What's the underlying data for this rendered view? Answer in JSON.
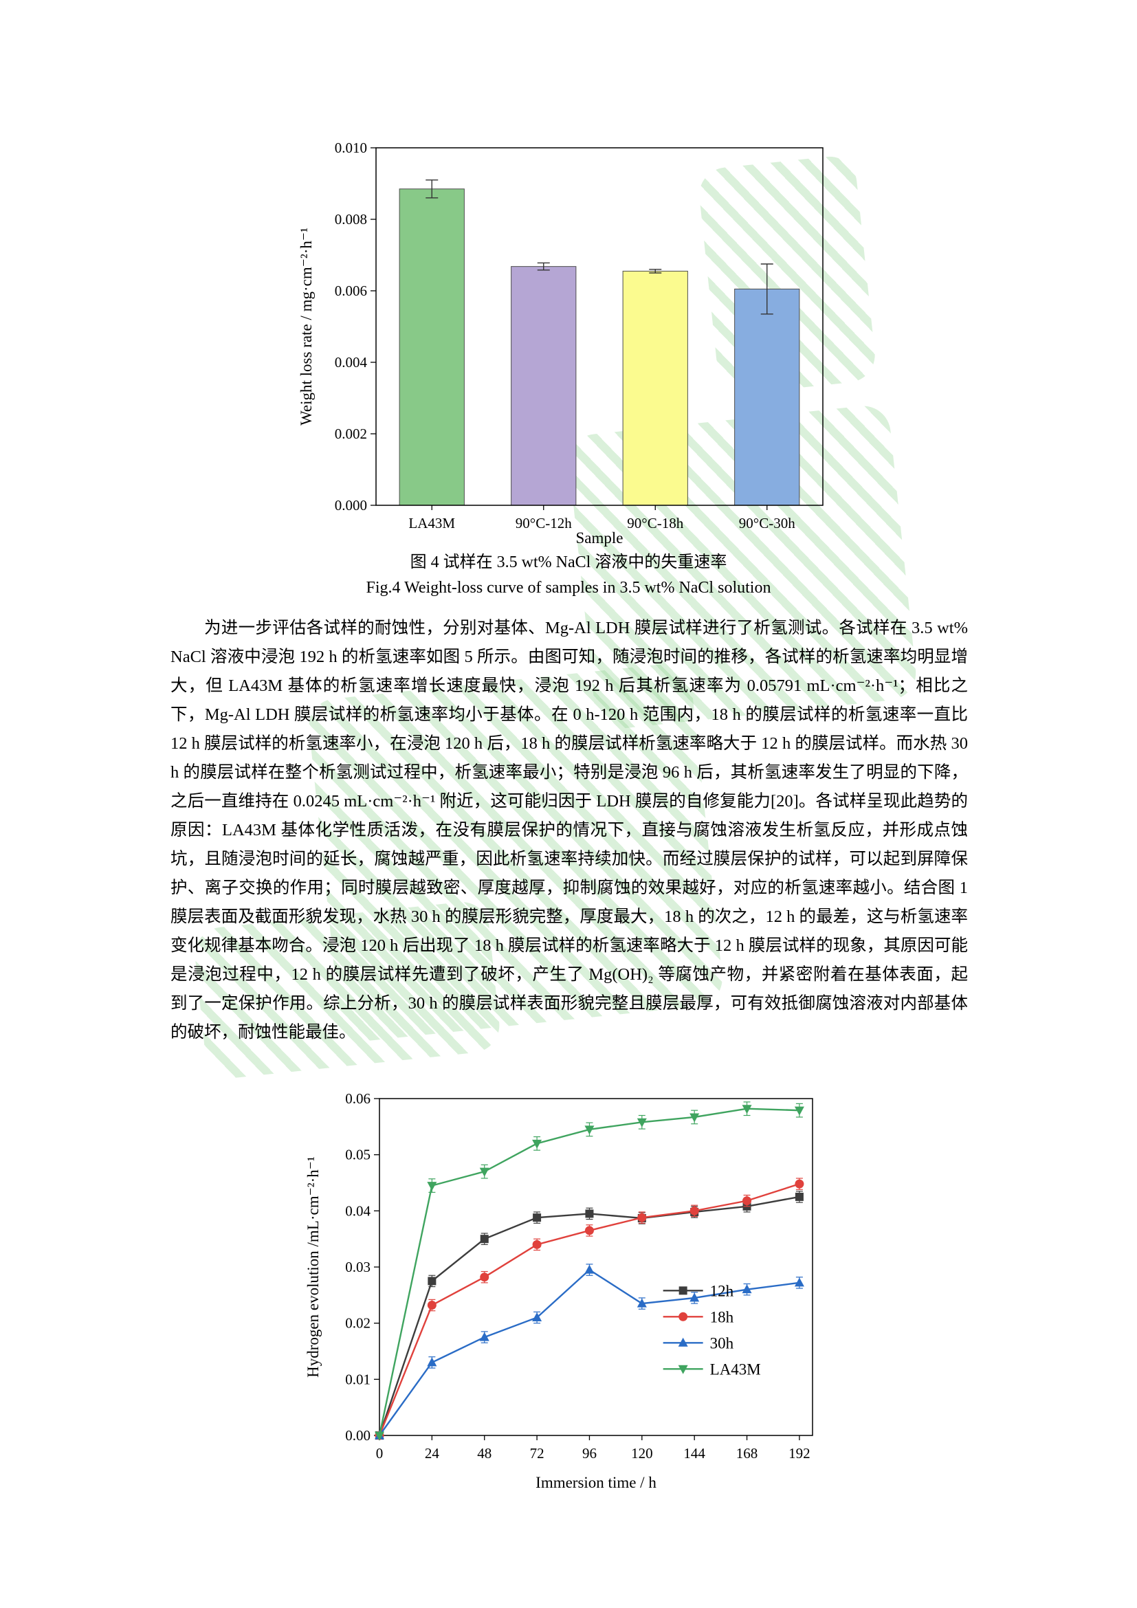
{
  "watermark": {
    "color": "#8cd28c"
  },
  "figure4": {
    "caption_zh": "图 4  试样在 3.5 wt% NaCl 溶液中的失重速率",
    "caption_en": "Fig.4 Weight-loss curve of samples in 3.5 wt% NaCl solution"
  },
  "paragraph": "为进一步评估各试样的耐蚀性，分别对基体、Mg-Al LDH 膜层试样进行了析氢测试。各试样在 3.5 wt% NaCl 溶液中浸泡 192 h 的析氢速率如图 5 所示。由图可知，随浸泡时间的推移，各试样的析氢速率均明显增大，但 LA43M 基体的析氢速率增长速度最快，浸泡 192 h 后其析氢速率为 0.05791 mL·cm⁻²·h⁻¹；相比之下，Mg-Al LDH 膜层试样的析氢速率均小于基体。在 0 h-120 h 范围内，18 h 的膜层试样的析氢速率一直比 12 h 膜层试样的析氢速率小，在浸泡 120 h 后，18 h 的膜层试样析氢速率略大于 12 h 的膜层试样。而水热 30 h 的膜层试样在整个析氢测试过程中，析氢速率最小；特别是浸泡 96 h 后，其析氢速率发生了明显的下降，之后一直维持在 0.0245 mL·cm⁻²·h⁻¹ 附近，这可能归因于 LDH 膜层的自修复能力[20]。各试样呈现此趋势的原因：LA43M 基体化学性质活泼，在没有膜层保护的情况下，直接与腐蚀溶液发生析氢反应，并形成点蚀坑，且随浸泡时间的延长，腐蚀越严重，因此析氢速率持续加快。而经过膜层保护的试样，可以起到屏障保护、离子交换的作用；同时膜层越致密、厚度越厚，抑制腐蚀的效果越好，对应的析氢速率越小。结合图 1 膜层表面及截面形貌发现，水热 30 h 的膜层形貌完整，厚度最大，18 h 的次之，12 h 的最差，这与析氢速率变化规律基本吻合。浸泡 120 h 后出现了 18 h 膜层试样的析氢速率略大于 12 h 膜层试样的现象，其原因可能是浸泡过程中，12 h 的膜层试样先遭到了破坏，产生了 Mg(OH)₂ 等腐蚀产物，并紧密附着在基体表面，起到了一定保护作用。综上分析，30 h 的膜层试样表面形貌完整且膜层最厚，可有效抵御腐蚀溶液对内部基体的破坏，耐蚀性能最佳。",
  "chart_data": [
    {
      "type": "bar",
      "title": "",
      "xlabel": "Sample",
      "ylabel": "Weight loss rate / mg·cm⁻²·h⁻¹",
      "categories": [
        "LA43M",
        "90°C-12h",
        "90°C-18h",
        "90°C-30h"
      ],
      "values": [
        0.00885,
        0.00668,
        0.00655,
        0.00605
      ],
      "errors": [
        0.00025,
        0.0001,
        5e-05,
        0.0007
      ],
      "bar_colors": [
        "#88c988",
        "#b5a6d4",
        "#fbfb8f",
        "#87ade0"
      ],
      "ylim": [
        0,
        0.01
      ],
      "ytick_step": 0.002,
      "ytick_decimals": 3,
      "yticks": [
        0.0,
        0.002,
        0.004,
        0.006,
        0.008,
        0.01
      ],
      "grid": false
    },
    {
      "type": "line",
      "title": "",
      "xlabel": "Immersion time / h",
      "ylabel": "Hydrogen evolution /mL·cm⁻²·h⁻¹",
      "x": [
        0,
        24,
        48,
        72,
        96,
        120,
        144,
        168,
        192
      ],
      "xticks": [
        0,
        24,
        48,
        72,
        96,
        120,
        144,
        168,
        192
      ],
      "xlim": [
        0,
        198
      ],
      "ylim": [
        0,
        0.06
      ],
      "ytick_step": 0.01,
      "ytick_decimals": 2,
      "yticks": [
        0.0,
        0.01,
        0.02,
        0.03,
        0.04,
        0.05,
        0.06
      ],
      "grid": false,
      "legend_position": "right-center",
      "series": [
        {
          "name": "12h",
          "color": "#3d3d3d",
          "marker": "square",
          "values": [
            0,
            0.0275,
            0.035,
            0.0388,
            0.0395,
            0.0387,
            0.0398,
            0.0408,
            0.0425
          ],
          "error": 0.001
        },
        {
          "name": "18h",
          "color": "#e0413c",
          "marker": "circle",
          "values": [
            0,
            0.0232,
            0.0282,
            0.034,
            0.0365,
            0.0388,
            0.04,
            0.0418,
            0.0448
          ],
          "error": 0.001
        },
        {
          "name": "30h",
          "color": "#2a6cc6",
          "marker": "triangle-up",
          "values": [
            0,
            0.013,
            0.0175,
            0.021,
            0.0295,
            0.0235,
            0.0245,
            0.026,
            0.0272
          ],
          "error": 0.001
        },
        {
          "name": "LA43M",
          "color": "#3fa45f",
          "marker": "triangle-down",
          "values": [
            0,
            0.0445,
            0.047,
            0.052,
            0.0545,
            0.0558,
            0.0567,
            0.0582,
            0.0579
          ],
          "error": 0.0012
        }
      ]
    }
  ]
}
